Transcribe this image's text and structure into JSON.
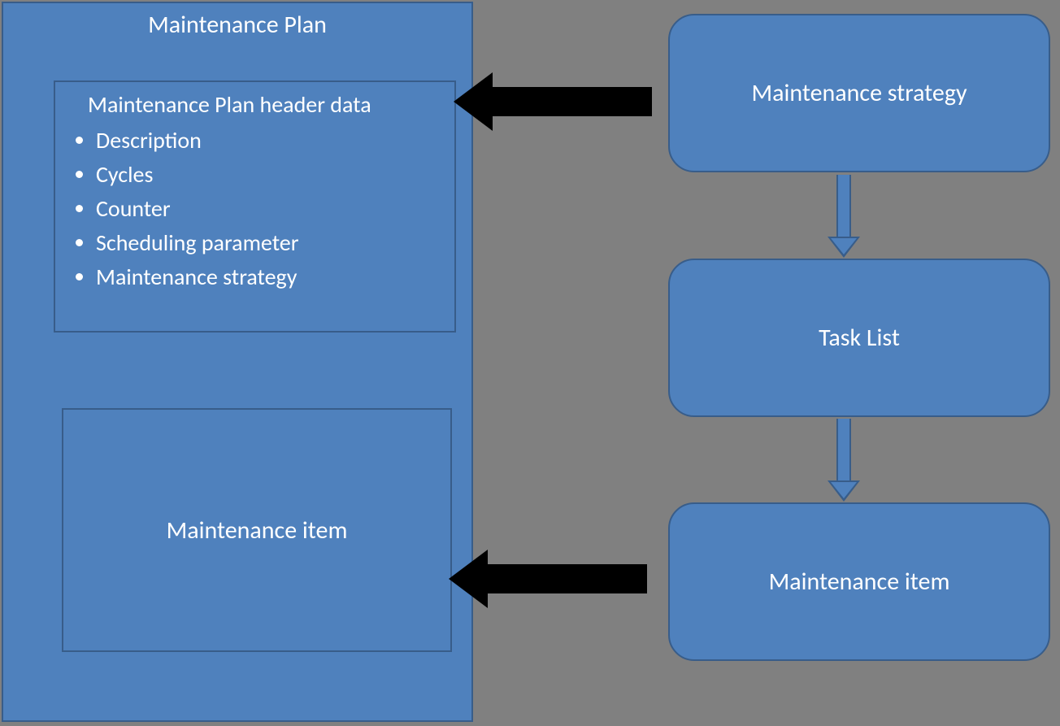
{
  "diagram": {
    "type": "flowchart",
    "background_color": "#808080",
    "node_fill": "#4f81bd",
    "node_border": "#385d8a",
    "text_color": "#ffffff",
    "font_family": "Calibri",
    "title_fontsize": 30,
    "list_fontsize": 28,
    "side_box_border_radius": 32,
    "main_plan": {
      "title": "Maintenance Plan",
      "header_box": {
        "title": "Maintenance Plan header data",
        "items": [
          "Description",
          "Cycles",
          "Counter",
          "Scheduling parameter",
          "Maintenance strategy"
        ]
      },
      "item_box": {
        "label": "Maintenance item"
      }
    },
    "side_boxes": [
      {
        "label": "Maintenance strategy"
      },
      {
        "label": "Task List"
      },
      {
        "label": "Maintenance item"
      }
    ],
    "solid_arrows": [
      {
        "from": "maintenance-strategy-box",
        "to": "header-data-box",
        "color": "#000000",
        "direction": "left",
        "shaft_height": 36,
        "head_size": 48
      },
      {
        "from": "maintenance-item-side-box",
        "to": "item-box",
        "color": "#000000",
        "direction": "left",
        "shaft_height": 36,
        "head_size": 48
      }
    ],
    "hollow_arrows": [
      {
        "from": "maintenance-strategy-box",
        "to": "task-list-box",
        "fill": "#4f81bd",
        "border": "#385d8a",
        "direction": "down"
      },
      {
        "from": "task-list-box",
        "to": "maintenance-item-side-box",
        "fill": "#4f81bd",
        "border": "#385d8a",
        "direction": "down"
      }
    ]
  }
}
